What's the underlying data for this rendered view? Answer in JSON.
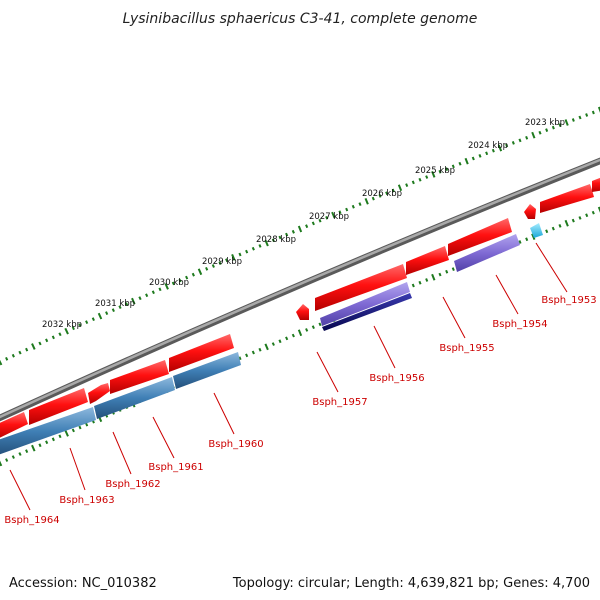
{
  "title": "Lysinibacillus sphaericus C3-41, complete genome",
  "accession": "Accession: NC_010382",
  "summary": "Topology: circular; Length: 4,639,821 bp; Genes: 4,700",
  "colors": {
    "forward_gene": "#e8000e",
    "forward_gene_light": "#ff5a5a",
    "blue_feature": "#3f7fb5",
    "violet_feature": "#7f6ad4",
    "navy_feature": "#0c0c7a",
    "cyan_feature": "#2fc8f0",
    "ruler_tick": "#1e7a1e",
    "backbone": "#7a7a7a",
    "label_red": "#cc0000"
  },
  "kbp_labels": [
    {
      "text": "2023 kbp",
      "kbp": 2023
    },
    {
      "text": "2024 kbp",
      "kbp": 2024
    },
    {
      "text": "2025 kbp",
      "kbp": 2025
    },
    {
      "text": "2026 kbp",
      "kbp": 2026
    },
    {
      "text": "2027 kbp",
      "kbp": 2027
    },
    {
      "text": "2028 kbp",
      "kbp": 2028
    },
    {
      "text": "2029 kbp",
      "kbp": 2029
    },
    {
      "text": "2030 kbp",
      "kbp": 2030
    },
    {
      "text": "2031 kbp",
      "kbp": 2031
    },
    {
      "text": "2032 kbp",
      "kbp": 2032
    }
  ],
  "gene_labels": [
    {
      "name": "Bsph_1953"
    },
    {
      "name": "Bsph_1954"
    },
    {
      "name": "Bsph_1955"
    },
    {
      "name": "Bsph_1956"
    },
    {
      "name": "Bsph_1957"
    },
    {
      "name": "Bsph_1960"
    },
    {
      "name": "Bsph_1961"
    },
    {
      "name": "Bsph_1962"
    },
    {
      "name": "Bsph_1963"
    },
    {
      "name": "Bsph_1964"
    }
  ]
}
